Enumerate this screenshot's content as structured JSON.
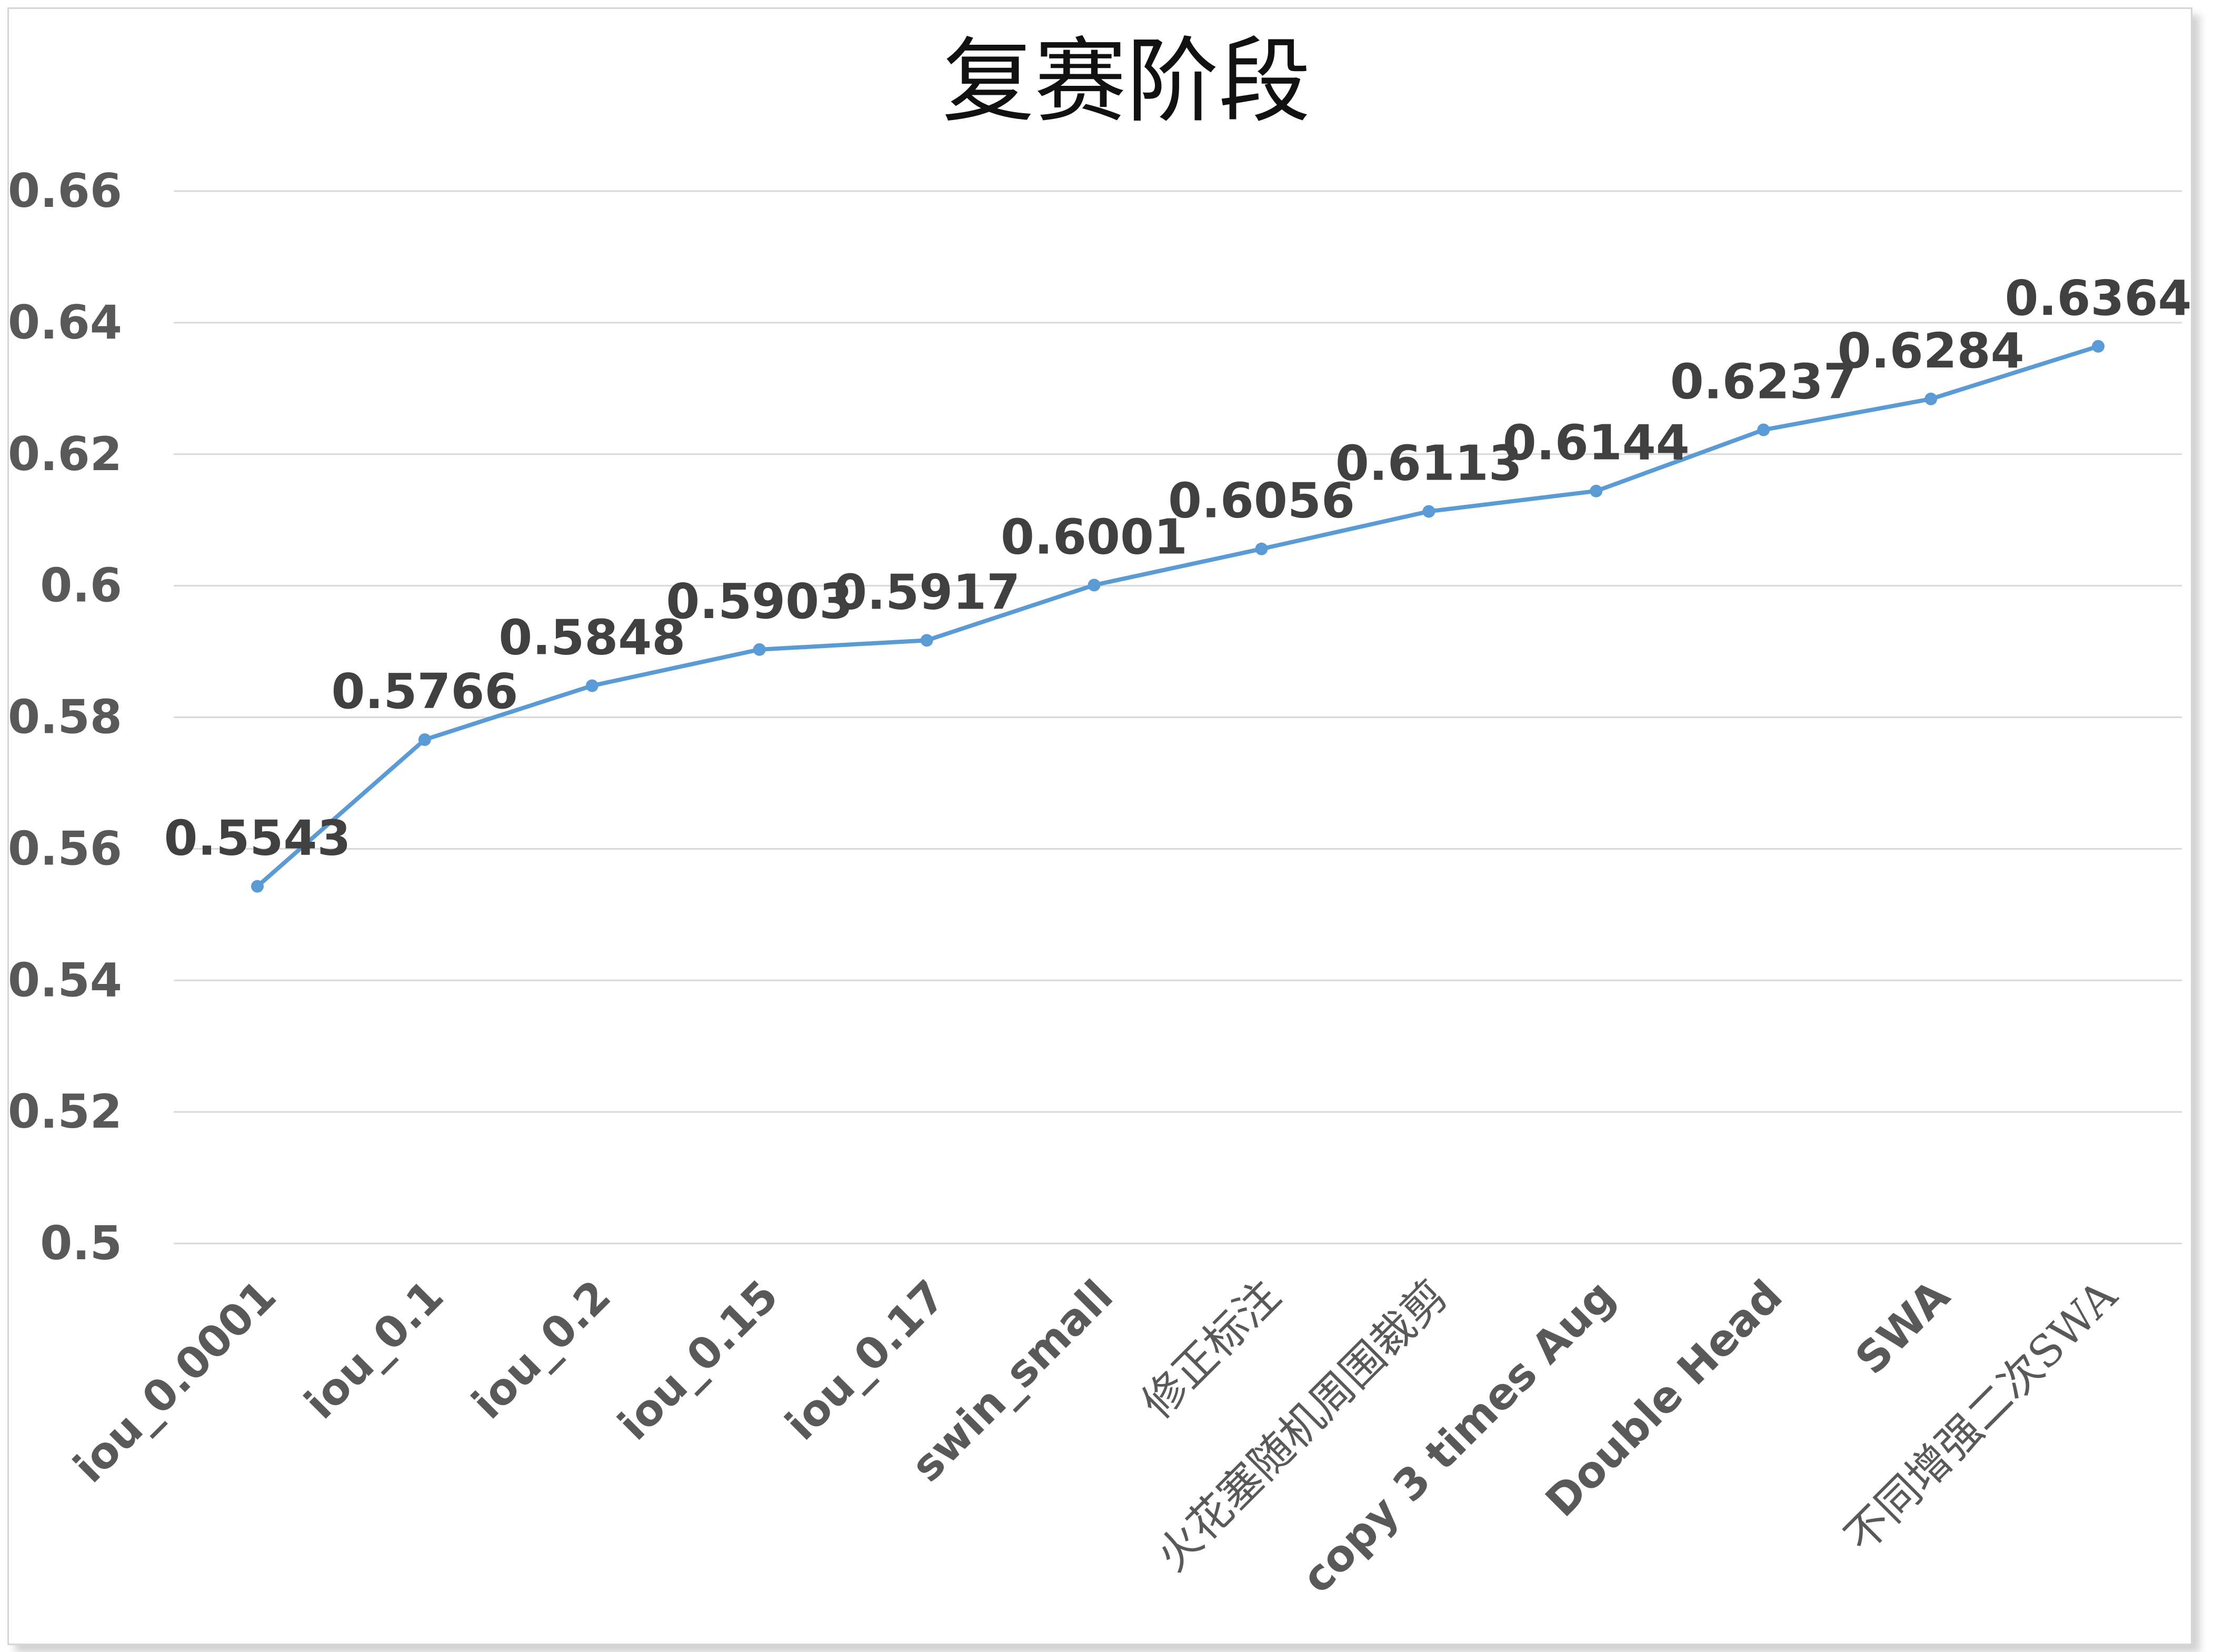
{
  "chart_data": {
    "type": "line",
    "title": "复赛阶段",
    "xlabel": "",
    "ylabel": "",
    "categories": [
      "iou_0.0001",
      "iou_0.1",
      "iou_0.2",
      "iou_0.15",
      "iou_0.17",
      "swin_small",
      "修正标注",
      "火花塞随机周围裁剪",
      "copy 3 times Aug",
      "Double Head",
      "SWA",
      "不同增强二次SWA"
    ],
    "series": [
      {
        "values": [
          0.5543,
          0.5766,
          0.5848,
          0.5903,
          0.5917,
          0.6001,
          0.6056,
          0.6113,
          0.6144,
          0.6237,
          0.6284,
          0.6364
        ],
        "color": "#5b9bd5"
      }
    ],
    "data_labels": [
      "0.5543",
      "0.5766",
      "0.5848",
      "0.5903",
      "0.5917",
      "0.6001",
      "0.6056",
      "0.6113",
      "0.6144",
      "0.6237",
      "0.6284",
      "0.6364"
    ],
    "ylim": [
      0.5,
      0.66
    ],
    "yticks": [
      "0.5",
      "0.52",
      "0.54",
      "0.56",
      "0.58",
      "0.6",
      "0.62",
      "0.64",
      "0.66"
    ],
    "grid": true,
    "legend": "none"
  }
}
